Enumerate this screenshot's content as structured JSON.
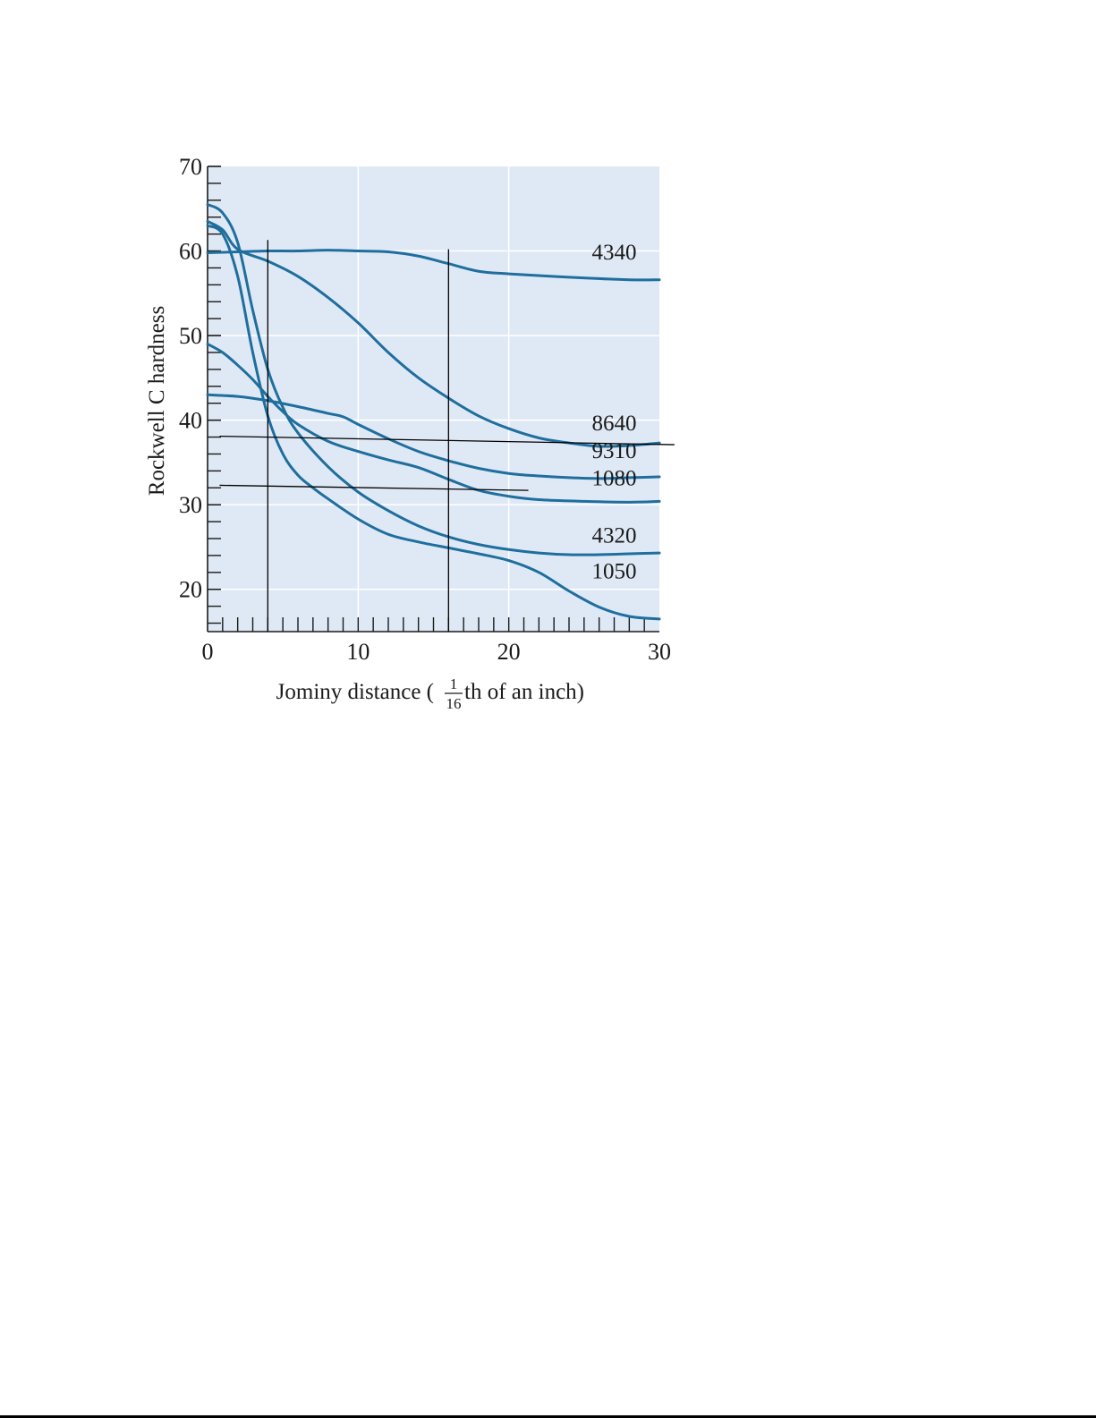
{
  "chart_data": {
    "type": "line",
    "xlabel_pre": "Jominy distance (",
    "xlabel_num": "1",
    "xlabel_den": "16",
    "xlabel_post": "th of an inch)",
    "ylabel": "Rockwell C hardness",
    "xlim": [
      0,
      30
    ],
    "ylim": [
      15,
      70
    ],
    "xticks": [
      0,
      10,
      20,
      30
    ],
    "yticks": [
      20,
      30,
      40,
      50,
      60,
      70
    ],
    "grid": true,
    "colors": {
      "curve": "#1f6e9e",
      "plot_bg": "#dfe9f5",
      "grid": "#ffffff",
      "axis": "#1a1a1a",
      "guide": "#000000"
    },
    "series": [
      {
        "name": "4340",
        "x": [
          0,
          2,
          4,
          6,
          8,
          10,
          12,
          14,
          16,
          18,
          20,
          24,
          28,
          30
        ],
        "y": [
          59.8,
          59.9,
          60,
          60,
          60.1,
          60,
          59.9,
          59.4,
          58.5,
          57.6,
          57.3,
          56.9,
          56.6,
          56.6
        ]
      },
      {
        "name": "8640",
        "x": [
          0,
          1,
          2,
          4,
          6,
          8,
          10,
          12,
          14,
          16,
          18,
          20,
          22,
          24,
          26,
          28,
          30
        ],
        "y": [
          63.5,
          62.5,
          60.2,
          58.8,
          57,
          54.5,
          51.5,
          48,
          45,
          42.6,
          40.5,
          39,
          37.9,
          37.3,
          36.9,
          37,
          37.3
        ]
      },
      {
        "name": "9310",
        "x": [
          0,
          2,
          4,
          6,
          8,
          9,
          10,
          12,
          14,
          16,
          18,
          20,
          22,
          24,
          26,
          28,
          30
        ],
        "y": [
          43,
          42.8,
          42.3,
          41.6,
          40.8,
          40.4,
          39.5,
          37.8,
          36.3,
          35.2,
          34.3,
          33.7,
          33.4,
          33.2,
          33.1,
          33.2,
          33.3
        ]
      },
      {
        "name": "1080",
        "x": [
          0,
          1,
          2,
          3,
          4,
          5,
          6,
          8,
          10,
          12,
          14,
          16,
          18,
          20,
          22,
          25,
          28,
          30
        ],
        "y": [
          49,
          48,
          46.5,
          44.8,
          42.8,
          41,
          39.5,
          37.5,
          36.3,
          35.3,
          34.4,
          33,
          31.7,
          31,
          30.6,
          30.4,
          30.3,
          30.4
        ]
      },
      {
        "name": "4320",
        "x": [
          0,
          1,
          2,
          3,
          4,
          5,
          6,
          8,
          10,
          12,
          14,
          16,
          18,
          20,
          22,
          24,
          26,
          28,
          30
        ],
        "y": [
          65.5,
          64.5,
          61,
          53,
          46,
          41.5,
          38.5,
          34.5,
          31.5,
          29.3,
          27.5,
          26.2,
          25.3,
          24.7,
          24.3,
          24.1,
          24.1,
          24.2,
          24.3
        ]
      },
      {
        "name": "1050",
        "x": [
          0,
          1,
          2,
          3,
          4,
          5,
          6,
          7,
          8,
          10,
          12,
          14,
          16,
          18,
          20,
          22,
          24,
          26,
          28,
          30
        ],
        "y": [
          63,
          62,
          57,
          48,
          40.5,
          36,
          33.5,
          32,
          30.7,
          28.3,
          26.5,
          25.6,
          24.9,
          24.2,
          23.4,
          22,
          19.8,
          17.9,
          16.8,
          16.5
        ]
      }
    ],
    "series_labels": [
      {
        "text": "4340",
        "x": 27,
        "y": 59
      },
      {
        "text": "8640",
        "x": 27,
        "y": 38.8
      },
      {
        "text": "9310",
        "x": 27,
        "y": 35.5
      },
      {
        "text": "1080",
        "x": 27,
        "y": 32.3
      },
      {
        "text": "4320",
        "x": 27,
        "y": 25.5
      },
      {
        "text": "1050",
        "x": 27,
        "y": 21.3
      }
    ],
    "annotation_lines": [
      {
        "x1": 4,
        "y1": 15,
        "x2": 4,
        "y2": 61.3
      },
      {
        "x1": 16,
        "y1": 15,
        "x2": 16,
        "y2": 60.2
      },
      {
        "x1": 0.8,
        "y1": 38.1,
        "x2": 31,
        "y2": 37.1
      },
      {
        "x1": 0.8,
        "y1": 32.3,
        "x2": 21.3,
        "y2": 31.7
      }
    ]
  }
}
